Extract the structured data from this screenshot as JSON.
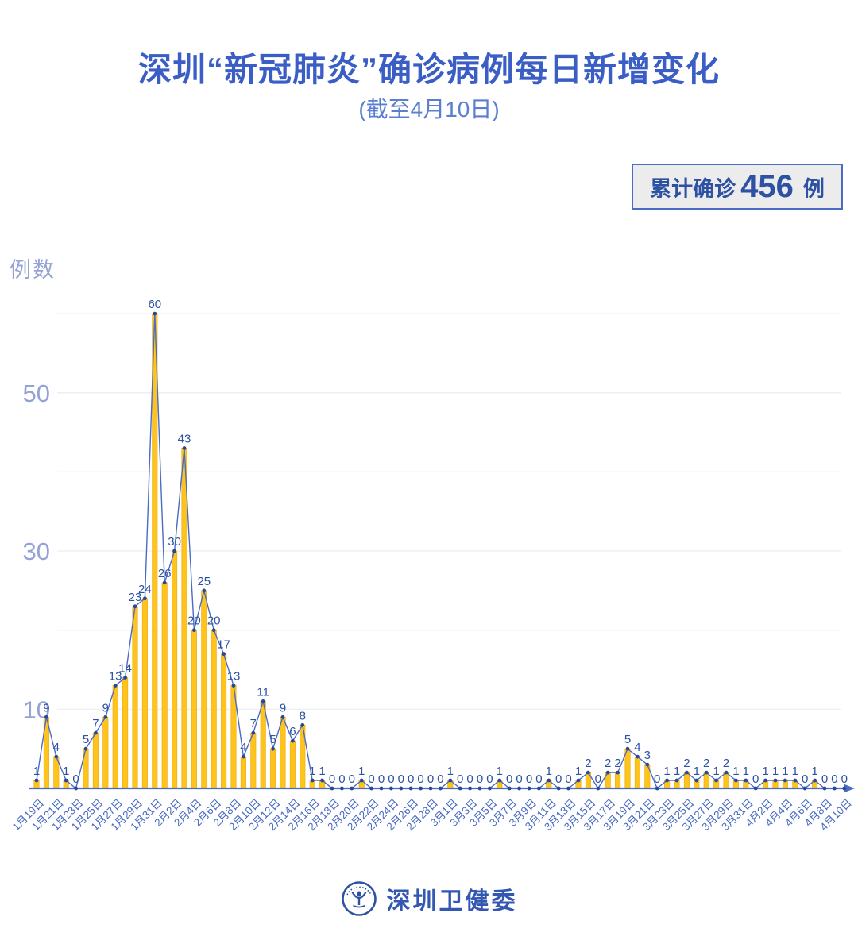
{
  "header": {
    "title": "深圳“新冠肺炎”确诊病例每日新增变化",
    "subtitle": "(截至4月10日)"
  },
  "badge": {
    "label": "累计确诊",
    "count": "456",
    "unit": "例"
  },
  "footer": {
    "org": "深圳卫健委",
    "logo": "shenzhen-health-commission-emblem"
  },
  "colors": {
    "title": "#3a5ec6",
    "subtitle": "#5b7ed0",
    "bar": "#ffc41c",
    "bar_edge": "#edae1a",
    "line": "#4a6cc3",
    "dot": "#27489b",
    "value_label": "#2d51a3",
    "axis_label": "#4668c2",
    "ytick": "#95a2d6",
    "grid": "#ededf2",
    "badge_bg": "#ececec",
    "badge_border": "#4a6cc3"
  },
  "chart_data": {
    "type": "bar",
    "line_overlay": true,
    "title": "深圳“新冠肺炎”确诊病例每日新增变化",
    "subtitle": "(截至4月10日)",
    "xlabel": "",
    "ylabel": "例数",
    "ylim": [
      0,
      62
    ],
    "gridlines": [
      10,
      20,
      30,
      40,
      50,
      60
    ],
    "ytick_labels": [
      10,
      30,
      50
    ],
    "x_tick_every": 2,
    "legend": "none",
    "cumulative_total": 456,
    "categories": [
      "1月19日",
      "1月20日",
      "1月21日",
      "1月22日",
      "1月23日",
      "1月24日",
      "1月25日",
      "1月26日",
      "1月27日",
      "1月28日",
      "1月29日",
      "1月30日",
      "1月31日",
      "2月1日",
      "2月2日",
      "2月3日",
      "2月4日",
      "2月5日",
      "2月6日",
      "2月7日",
      "2月8日",
      "2月9日",
      "2月10日",
      "2月11日",
      "2月12日",
      "2月13日",
      "2月14日",
      "2月15日",
      "2月16日",
      "2月17日",
      "2月18日",
      "2月19日",
      "2月20日",
      "2月21日",
      "2月22日",
      "2月23日",
      "2月24日",
      "2月25日",
      "2月26日",
      "2月27日",
      "2月28日",
      "2月29日",
      "3月1日",
      "3月2日",
      "3月3日",
      "3月4日",
      "3月5日",
      "3月6日",
      "3月7日",
      "3月8日",
      "3月9日",
      "3月10日",
      "3月11日",
      "3月12日",
      "3月13日",
      "3月14日",
      "3月15日",
      "3月16日",
      "3月17日",
      "3月18日",
      "3月19日",
      "3月20日",
      "3月21日",
      "3月22日",
      "3月23日",
      "3月24日",
      "3月25日",
      "3月26日",
      "3月27日",
      "3月28日",
      "3月29日",
      "3月30日",
      "3月31日",
      "4月1日",
      "4月2日",
      "4月3日",
      "4月4日",
      "4月5日",
      "4月6日",
      "4月7日",
      "4月8日",
      "4月9日",
      "4月10日"
    ],
    "values": [
      1,
      9,
      4,
      1,
      0,
      5,
      7,
      9,
      13,
      14,
      23,
      24,
      60,
      26,
      30,
      43,
      20,
      25,
      20,
      17,
      13,
      4,
      7,
      11,
      5,
      9,
      6,
      8,
      1,
      1,
      0,
      0,
      0,
      1,
      0,
      0,
      0,
      0,
      0,
      0,
      0,
      0,
      1,
      0,
      0,
      0,
      0,
      1,
      0,
      0,
      0,
      0,
      1,
      0,
      0,
      1,
      2,
      0,
      2,
      2,
      5,
      4,
      3,
      0,
      1,
      1,
      2,
      1,
      2,
      1,
      2,
      1,
      1,
      0,
      1,
      1,
      1,
      1,
      0,
      1,
      0,
      0,
      0
    ]
  }
}
